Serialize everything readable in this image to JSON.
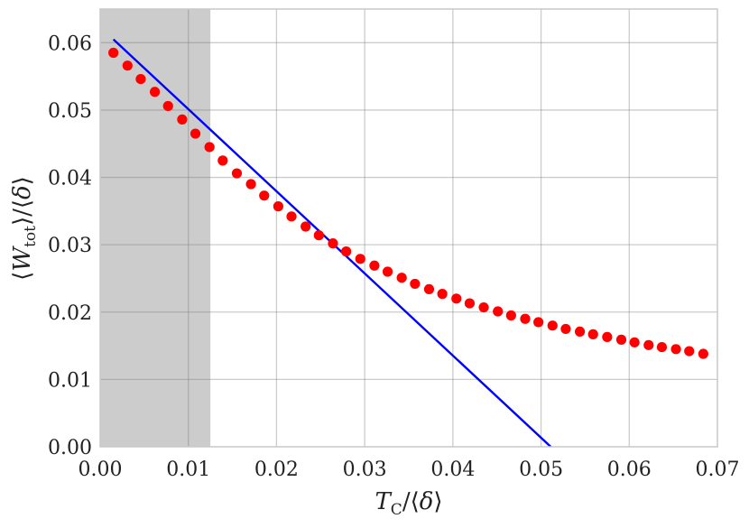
{
  "chart_data": {
    "type": "scatter",
    "xlabel": "T_C/⟨δ⟩",
    "ylabel": "⟨W_tot⟩/⟨δ⟩",
    "xlim": [
      0.0,
      0.07
    ],
    "ylim": [
      0.0,
      0.065
    ],
    "x_ticks": [
      "0.00",
      "0.01",
      "0.02",
      "0.03",
      "0.04",
      "0.05",
      "0.06",
      "0.07"
    ],
    "y_ticks": [
      "0.00",
      "0.01",
      "0.02",
      "0.03",
      "0.04",
      "0.05",
      "0.06"
    ],
    "grid": true,
    "shaded_region": {
      "x_start": 0.0,
      "x_end": 0.0125,
      "color": "#cccccc"
    },
    "series": [
      {
        "kind": "points",
        "color": "#ff0000",
        "x": [
          0.0015,
          0.0031,
          0.0046,
          0.0062,
          0.0077,
          0.0093,
          0.0108,
          0.0124,
          0.0139,
          0.0155,
          0.0171,
          0.0186,
          0.0202,
          0.0217,
          0.0233,
          0.0248,
          0.0264,
          0.0279,
          0.0295,
          0.0311,
          0.0326,
          0.0342,
          0.0357,
          0.0373,
          0.0388,
          0.0404,
          0.0419,
          0.0435,
          0.0451,
          0.0466,
          0.0482,
          0.0497,
          0.0513,
          0.0528,
          0.0544,
          0.0559,
          0.0575,
          0.0591,
          0.0606,
          0.0622,
          0.0637,
          0.0653,
          0.0668,
          0.0684
        ],
        "y": [
          0.0585,
          0.0566,
          0.0546,
          0.0527,
          0.0506,
          0.0486,
          0.0465,
          0.0445,
          0.0425,
          0.0406,
          0.039,
          0.0373,
          0.0357,
          0.0342,
          0.0327,
          0.0314,
          0.0302,
          0.029,
          0.0279,
          0.0269,
          0.026,
          0.0251,
          0.0242,
          0.0234,
          0.0227,
          0.022,
          0.0213,
          0.0207,
          0.0201,
          0.0195,
          0.019,
          0.0185,
          0.018,
          0.0175,
          0.0171,
          0.0167,
          0.0163,
          0.0159,
          0.0155,
          0.0151,
          0.0148,
          0.0145,
          0.0142,
          0.0138
        ]
      },
      {
        "kind": "line",
        "color": "#0000ff",
        "x": [
          0.0015,
          0.0511
        ],
        "y": [
          0.0605,
          0.0
        ]
      }
    ]
  }
}
